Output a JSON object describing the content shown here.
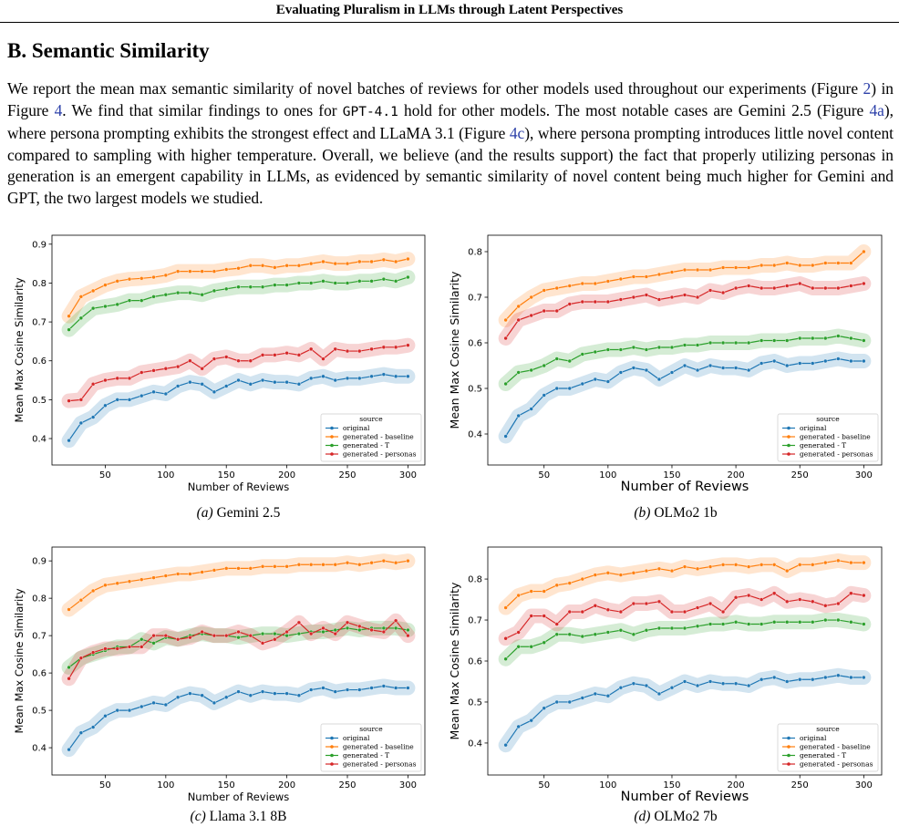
{
  "header": "Evaluating Pluralism in LLMs through Latent Perspectives",
  "section_title": "B. Semantic Similarity",
  "paragraph": [
    "We report the mean max semantic similarity of novel batches of reviews for other models used throughout our experiments (Figure ",
    "2",
    ") in Figure ",
    "4",
    ". We find that similar findings to ones for ",
    "GPT-4.1",
    " hold for other models. The most notable cases are Gemini 2.5 (Figure ",
    "4a",
    "), where persona prompting exhibits the strongest effect and LLaMA 3.1 (Figure ",
    "4c",
    "), where persona prompting introduces little novel content compared to sampling with higher temperature. Overall, we believe (and the results support) the fact that properly utilizing personas in generation is an emergent capability in LLMs, as evidenced by semantic similarity of novel content being much higher for Gemini and GPT, the two largest models we studied."
  ],
  "chart_data": [
    {
      "type": "line",
      "caption_label": "(a)",
      "caption": "Gemini 2.5",
      "xlabel": "Number of Reviews",
      "ylabel": "Mean Max Cosine Similarity",
      "legend_title": "source",
      "legend": "lower right",
      "x": [
        20,
        30,
        40,
        50,
        60,
        70,
        80,
        90,
        100,
        110,
        120,
        130,
        140,
        150,
        160,
        170,
        180,
        190,
        200,
        210,
        220,
        230,
        240,
        250,
        260,
        270,
        280,
        290,
        300
      ],
      "xlim": [
        6,
        314
      ],
      "xticks": [
        50,
        100,
        150,
        200,
        250,
        300
      ],
      "ylim": [
        0.332,
        0.923
      ],
      "yticks": [
        0.4,
        0.5,
        0.6,
        0.7,
        0.8,
        0.9
      ],
      "series": [
        {
          "name": "original",
          "color": "#1f77b4",
          "values": [
            0.395,
            0.44,
            0.455,
            0.485,
            0.5,
            0.5,
            0.51,
            0.52,
            0.515,
            0.535,
            0.545,
            0.54,
            0.52,
            0.535,
            0.55,
            0.54,
            0.55,
            0.545,
            0.545,
            0.54,
            0.555,
            0.56,
            0.55,
            0.555,
            0.555,
            0.56,
            0.565,
            0.56,
            0.56
          ]
        },
        {
          "name": "generated - baseline",
          "color": "#ff7f0e",
          "values": [
            0.715,
            0.765,
            0.78,
            0.795,
            0.805,
            0.81,
            0.812,
            0.815,
            0.82,
            0.83,
            0.83,
            0.83,
            0.83,
            0.835,
            0.838,
            0.845,
            0.845,
            0.84,
            0.845,
            0.845,
            0.85,
            0.855,
            0.85,
            0.85,
            0.855,
            0.855,
            0.86,
            0.855,
            0.862
          ]
        },
        {
          "name": "generated - T",
          "color": "#2ca02c",
          "values": [
            0.68,
            0.71,
            0.735,
            0.74,
            0.745,
            0.755,
            0.755,
            0.765,
            0.77,
            0.775,
            0.775,
            0.77,
            0.78,
            0.785,
            0.79,
            0.79,
            0.79,
            0.795,
            0.795,
            0.8,
            0.8,
            0.805,
            0.8,
            0.8,
            0.805,
            0.805,
            0.81,
            0.805,
            0.815
          ]
        },
        {
          "name": "generated - personas",
          "color": "#d62728",
          "values": [
            0.497,
            0.5,
            0.54,
            0.55,
            0.555,
            0.555,
            0.57,
            0.575,
            0.58,
            0.585,
            0.6,
            0.58,
            0.605,
            0.61,
            0.6,
            0.6,
            0.615,
            0.615,
            0.62,
            0.615,
            0.63,
            0.605,
            0.63,
            0.625,
            0.625,
            0.63,
            0.635,
            0.635,
            0.64
          ]
        }
      ]
    },
    {
      "type": "line",
      "caption_label": "(b)",
      "caption": "OLMo2 1b",
      "xlabel": "Number of Reviews",
      "ylabel": "Mean Max Cosine Similarity",
      "legend_title": "source",
      "legend": "lower right",
      "x": [
        20,
        30,
        40,
        50,
        60,
        70,
        80,
        90,
        100,
        110,
        120,
        130,
        140,
        150,
        160,
        170,
        180,
        190,
        200,
        210,
        220,
        230,
        240,
        250,
        260,
        270,
        280,
        290,
        300
      ],
      "xlim": [
        6,
        314
      ],
      "xticks": [
        50,
        100,
        150,
        200,
        250,
        300
      ],
      "ylim": [
        0.332,
        0.836
      ],
      "yticks": [
        0.4,
        0.5,
        0.6,
        0.7,
        0.8
      ],
      "series": [
        {
          "name": "original",
          "color": "#1f77b4",
          "values": [
            0.395,
            0.44,
            0.455,
            0.485,
            0.5,
            0.5,
            0.51,
            0.52,
            0.515,
            0.535,
            0.545,
            0.54,
            0.52,
            0.535,
            0.55,
            0.54,
            0.55,
            0.545,
            0.545,
            0.54,
            0.555,
            0.56,
            0.55,
            0.555,
            0.555,
            0.56,
            0.565,
            0.56,
            0.56
          ]
        },
        {
          "name": "generated - baseline",
          "color": "#ff7f0e",
          "values": [
            0.65,
            0.68,
            0.7,
            0.715,
            0.72,
            0.725,
            0.73,
            0.73,
            0.735,
            0.74,
            0.745,
            0.745,
            0.75,
            0.755,
            0.76,
            0.76,
            0.76,
            0.765,
            0.765,
            0.765,
            0.77,
            0.77,
            0.775,
            0.77,
            0.77,
            0.775,
            0.775,
            0.775,
            0.8
          ]
        },
        {
          "name": "generated - T",
          "color": "#2ca02c",
          "values": [
            0.51,
            0.535,
            0.54,
            0.55,
            0.565,
            0.56,
            0.575,
            0.58,
            0.585,
            0.585,
            0.59,
            0.585,
            0.59,
            0.59,
            0.595,
            0.595,
            0.6,
            0.6,
            0.6,
            0.6,
            0.605,
            0.605,
            0.605,
            0.61,
            0.61,
            0.61,
            0.615,
            0.61,
            0.605
          ]
        },
        {
          "name": "generated - personas",
          "color": "#d62728",
          "values": [
            0.61,
            0.65,
            0.66,
            0.67,
            0.67,
            0.685,
            0.69,
            0.69,
            0.69,
            0.695,
            0.7,
            0.705,
            0.695,
            0.7,
            0.705,
            0.7,
            0.715,
            0.71,
            0.72,
            0.725,
            0.72,
            0.72,
            0.725,
            0.73,
            0.72,
            0.72,
            0.72,
            0.725,
            0.73
          ]
        }
      ]
    },
    {
      "type": "line",
      "caption_label": "(c)",
      "caption": "Llama 3.1 8B",
      "xlabel": "Number of Reviews",
      "ylabel": "Mean Max Cosine Similarity",
      "legend_title": "source",
      "legend": "lower right",
      "x": [
        20,
        30,
        40,
        50,
        60,
        70,
        80,
        90,
        100,
        110,
        120,
        130,
        140,
        150,
        160,
        170,
        180,
        190,
        200,
        210,
        220,
        230,
        240,
        250,
        260,
        270,
        280,
        290,
        300
      ],
      "xlim": [
        6,
        314
      ],
      "xticks": [
        50,
        100,
        150,
        200,
        250,
        300
      ],
      "ylim": [
        0.327,
        0.937
      ],
      "yticks": [
        0.4,
        0.5,
        0.6,
        0.7,
        0.8,
        0.9
      ],
      "series": [
        {
          "name": "original",
          "color": "#1f77b4",
          "values": [
            0.395,
            0.44,
            0.455,
            0.485,
            0.5,
            0.5,
            0.51,
            0.52,
            0.515,
            0.535,
            0.545,
            0.54,
            0.52,
            0.535,
            0.55,
            0.54,
            0.55,
            0.545,
            0.545,
            0.54,
            0.555,
            0.56,
            0.55,
            0.555,
            0.555,
            0.56,
            0.565,
            0.56,
            0.56
          ]
        },
        {
          "name": "generated - baseline",
          "color": "#ff7f0e",
          "values": [
            0.77,
            0.795,
            0.82,
            0.835,
            0.84,
            0.845,
            0.85,
            0.855,
            0.86,
            0.865,
            0.865,
            0.87,
            0.875,
            0.88,
            0.88,
            0.88,
            0.885,
            0.885,
            0.885,
            0.89,
            0.89,
            0.89,
            0.89,
            0.895,
            0.89,
            0.895,
            0.9,
            0.895,
            0.9
          ]
        },
        {
          "name": "generated - T",
          "color": "#2ca02c",
          "values": [
            0.615,
            0.64,
            0.65,
            0.66,
            0.67,
            0.67,
            0.69,
            0.68,
            0.695,
            0.69,
            0.7,
            0.705,
            0.7,
            0.7,
            0.695,
            0.7,
            0.705,
            0.705,
            0.7,
            0.705,
            0.71,
            0.71,
            0.715,
            0.72,
            0.715,
            0.72,
            0.72,
            0.72,
            0.715
          ]
        },
        {
          "name": "generated - personas",
          "color": "#d62728",
          "values": [
            0.585,
            0.64,
            0.655,
            0.665,
            0.665,
            0.67,
            0.67,
            0.7,
            0.7,
            0.69,
            0.695,
            0.71,
            0.7,
            0.7,
            0.71,
            0.7,
            0.68,
            0.69,
            0.71,
            0.735,
            0.705,
            0.72,
            0.705,
            0.735,
            0.725,
            0.715,
            0.71,
            0.74,
            0.7
          ]
        }
      ]
    },
    {
      "type": "line",
      "caption_label": "(d)",
      "caption": "OLMo2 7b",
      "xlabel": "Number of Reviews",
      "ylabel": "Mean Max Cosine Similarity",
      "legend_title": "source",
      "legend": "lower right",
      "x": [
        20,
        30,
        40,
        50,
        60,
        70,
        80,
        90,
        100,
        110,
        120,
        130,
        140,
        150,
        160,
        170,
        180,
        190,
        200,
        210,
        220,
        230,
        240,
        250,
        260,
        270,
        280,
        290,
        300
      ],
      "xlim": [
        6,
        314
      ],
      "xticks": [
        50,
        100,
        150,
        200,
        250,
        300
      ],
      "ylim": [
        0.322,
        0.878
      ],
      "yticks": [
        0.4,
        0.5,
        0.6,
        0.7,
        0.8
      ],
      "series": [
        {
          "name": "original",
          "color": "#1f77b4",
          "values": [
            0.395,
            0.44,
            0.455,
            0.485,
            0.5,
            0.5,
            0.51,
            0.52,
            0.515,
            0.535,
            0.545,
            0.54,
            0.52,
            0.535,
            0.55,
            0.54,
            0.55,
            0.545,
            0.545,
            0.54,
            0.555,
            0.56,
            0.55,
            0.555,
            0.555,
            0.56,
            0.565,
            0.56,
            0.56
          ]
        },
        {
          "name": "generated - baseline",
          "color": "#ff7f0e",
          "values": [
            0.73,
            0.76,
            0.77,
            0.77,
            0.785,
            0.79,
            0.8,
            0.81,
            0.815,
            0.81,
            0.815,
            0.82,
            0.825,
            0.82,
            0.83,
            0.825,
            0.83,
            0.835,
            0.835,
            0.83,
            0.835,
            0.835,
            0.82,
            0.835,
            0.835,
            0.84,
            0.845,
            0.84,
            0.84
          ]
        },
        {
          "name": "generated - T",
          "color": "#2ca02c",
          "values": [
            0.605,
            0.635,
            0.635,
            0.645,
            0.665,
            0.665,
            0.66,
            0.665,
            0.67,
            0.675,
            0.665,
            0.675,
            0.68,
            0.68,
            0.68,
            0.685,
            0.69,
            0.69,
            0.695,
            0.69,
            0.69,
            0.695,
            0.695,
            0.695,
            0.695,
            0.7,
            0.7,
            0.695,
            0.69
          ]
        },
        {
          "name": "generated - personas",
          "color": "#d62728",
          "values": [
            0.655,
            0.67,
            0.71,
            0.71,
            0.69,
            0.72,
            0.72,
            0.735,
            0.725,
            0.72,
            0.74,
            0.74,
            0.745,
            0.72,
            0.72,
            0.73,
            0.74,
            0.72,
            0.755,
            0.76,
            0.75,
            0.765,
            0.745,
            0.75,
            0.745,
            0.735,
            0.74,
            0.765,
            0.76
          ]
        }
      ]
    }
  ]
}
